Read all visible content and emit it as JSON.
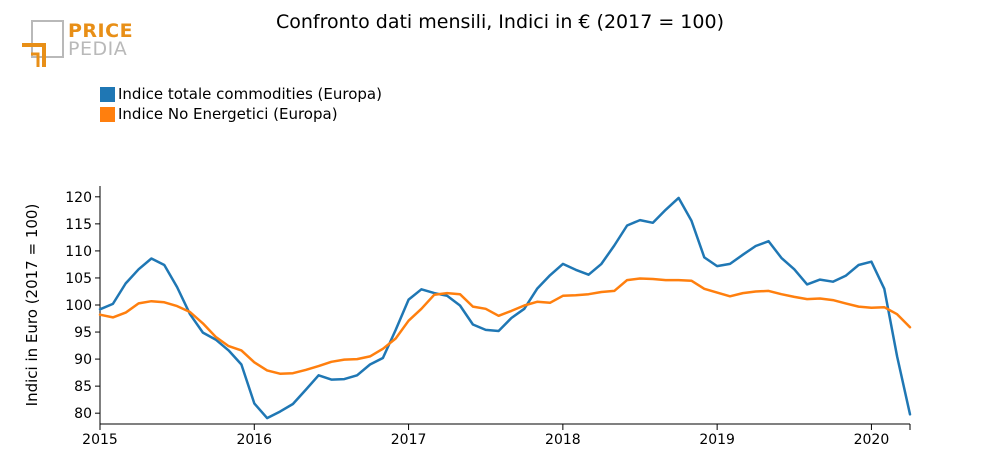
{
  "header": {
    "title": "Confronto dati mensili, Indici in € (2017 = 100)"
  },
  "logo": {
    "line1": "PRICE",
    "line2": "PEDIA"
  },
  "colors": {
    "series1": "#1f77b4",
    "series2": "#ff7f0e",
    "logo_orange": "#e88f17",
    "logo_gray": "#b9b9b9"
  },
  "chart_data": {
    "type": "line",
    "title": "Confronto dati mensili, Indici in € (2017 = 100)",
    "xlabel": "",
    "ylabel": "Indici in Euro (2017 = 100)",
    "x_start": 2015,
    "x_range": [
      2015,
      2020.25
    ],
    "ylim": [
      78,
      122
    ],
    "yticks": [
      80,
      85,
      90,
      95,
      100,
      105,
      110,
      115,
      120
    ],
    "xticks": [
      2015,
      2016,
      2017,
      2018,
      2019,
      2020
    ],
    "xtick_labels": [
      "2015",
      "2016",
      "2017",
      "2018",
      "2019",
      "2020"
    ],
    "legend_position": "top-left",
    "series": [
      {
        "name": "Indice totale commodities (Europa)",
        "color": "#1f77b4",
        "values": [
          99.2,
          100.2,
          104.0,
          106.6,
          108.6,
          107.4,
          103.3,
          98.3,
          94.9,
          93.6,
          91.6,
          89.0,
          81.8,
          79.1,
          80.3,
          81.7,
          84.3,
          87.0,
          86.2,
          86.3,
          87.0,
          89.0,
          90.2,
          95.4,
          101.0,
          102.9,
          102.2,
          101.7,
          99.9,
          96.4,
          95.4,
          95.2,
          97.6,
          99.3,
          103.0,
          105.5,
          107.6,
          106.5,
          105.6,
          107.6,
          111.0,
          114.7,
          115.7,
          115.2,
          117.6,
          119.8,
          115.6,
          108.8,
          107.2,
          107.6,
          109.3,
          110.9,
          111.8,
          108.7,
          106.6,
          103.8,
          104.7,
          104.3,
          105.4,
          107.4,
          108.0,
          103.0,
          90.5,
          79.8
        ]
      },
      {
        "name": "Indice No Energetici (Europa)",
        "color": "#ff7f0e",
        "values": [
          98.2,
          97.7,
          98.6,
          100.3,
          100.7,
          100.5,
          99.8,
          98.7,
          96.6,
          94.1,
          92.4,
          91.6,
          89.4,
          87.9,
          87.3,
          87.4,
          88.0,
          88.7,
          89.5,
          89.9,
          90.0,
          90.5,
          91.9,
          93.8,
          97.1,
          99.3,
          101.9,
          102.2,
          102.0,
          99.7,
          99.3,
          98.0,
          98.9,
          99.9,
          100.6,
          100.4,
          101.7,
          101.8,
          102.0,
          102.4,
          102.6,
          104.6,
          104.9,
          104.8,
          104.6,
          104.6,
          104.5,
          103.0,
          102.3,
          101.6,
          102.2,
          102.5,
          102.6,
          102.0,
          101.5,
          101.1,
          101.2,
          100.9,
          100.3,
          99.7,
          99.5,
          99.6,
          98.3,
          95.9
        ]
      }
    ]
  }
}
